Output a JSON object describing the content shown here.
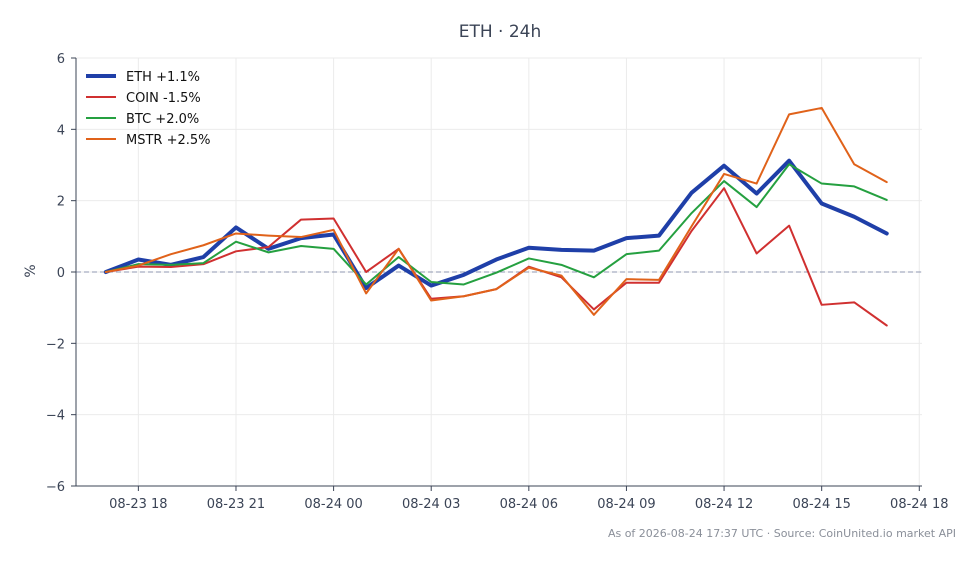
{
  "chart_data": {
    "type": "line",
    "title": "ETH · 24h",
    "ylabel": "%",
    "xlabel": "",
    "ylim": [
      -6,
      6
    ],
    "yticks": [
      -6,
      -4,
      -2,
      0,
      2,
      4,
      6
    ],
    "ytick_labels": [
      "−6",
      "−4",
      "−2",
      "0",
      "2",
      "4",
      "6"
    ],
    "xlim": [
      "2026-08-23 16:05",
      "2026-08-24 18:05"
    ],
    "xticks": [
      "2026-08-23 18:00",
      "2026-08-23 21:00",
      "2026-08-24 00:00",
      "2026-08-24 03:00",
      "2026-08-24 06:00",
      "2026-08-24 09:00",
      "2026-08-24 12:00",
      "2026-08-24 15:00",
      "2026-08-24 18:00"
    ],
    "xtick_labels": [
      "08-23 18",
      "08-23 21",
      "08-24 00",
      "08-24 03",
      "08-24 06",
      "08-24 09",
      "08-24 12",
      "08-24 15",
      "08-24 18"
    ],
    "grid": true,
    "zero_line": true,
    "legend_position": "top-left",
    "x": [
      "2026-08-23 17:00",
      "2026-08-23 18:00",
      "2026-08-23 19:00",
      "2026-08-23 20:00",
      "2026-08-23 21:00",
      "2026-08-23 22:00",
      "2026-08-23 23:00",
      "2026-08-24 00:00",
      "2026-08-24 01:00",
      "2026-08-24 02:00",
      "2026-08-24 03:00",
      "2026-08-24 04:00",
      "2026-08-24 05:00",
      "2026-08-24 06:00",
      "2026-08-24 07:00",
      "2026-08-24 08:00",
      "2026-08-24 09:00",
      "2026-08-24 10:00",
      "2026-08-24 11:00",
      "2026-08-24 12:00",
      "2026-08-24 13:00",
      "2026-08-24 14:00",
      "2026-08-24 15:00",
      "2026-08-24 16:00",
      "2026-08-24 17:00"
    ],
    "series": [
      {
        "name": "ETH +1.1%",
        "color": "#1f3fa8",
        "width": 4,
        "values": [
          0.0,
          0.35,
          0.2,
          0.42,
          1.25,
          0.65,
          0.95,
          1.05,
          -0.45,
          0.18,
          -0.38,
          -0.08,
          0.35,
          0.68,
          0.62,
          0.6,
          0.95,
          1.02,
          2.22,
          2.98,
          2.2,
          3.12,
          1.92,
          1.55,
          1.08
        ]
      },
      {
        "name": "COIN -1.5%",
        "color": "#d03030",
        "width": 2,
        "values": [
          0.0,
          0.15,
          0.14,
          0.22,
          0.58,
          0.7,
          1.47,
          1.5,
          0.0,
          0.65,
          -0.75,
          -0.68,
          -0.48,
          0.15,
          -0.15,
          -1.05,
          -0.3,
          -0.3,
          1.15,
          2.35,
          0.52,
          1.3,
          -0.92,
          -0.85,
          -1.5
        ]
      },
      {
        "name": "BTC +2.0%",
        "color": "#25a040",
        "width": 2,
        "values": [
          0.0,
          0.22,
          0.2,
          0.25,
          0.85,
          0.55,
          0.73,
          0.65,
          -0.35,
          0.42,
          -0.28,
          -0.35,
          -0.02,
          0.38,
          0.2,
          -0.15,
          0.5,
          0.6,
          1.65,
          2.55,
          1.82,
          3.02,
          2.48,
          2.4,
          2.02
        ]
      },
      {
        "name": "MSTR +2.5%",
        "color": "#e0621a",
        "width": 2,
        "values": [
          0.0,
          0.18,
          0.5,
          0.75,
          1.08,
          1.02,
          0.98,
          1.18,
          -0.6,
          0.65,
          -0.8,
          -0.68,
          -0.48,
          0.12,
          -0.1,
          -1.2,
          -0.2,
          -0.22,
          1.28,
          2.75,
          2.48,
          4.42,
          4.6,
          3.02,
          2.52
        ]
      }
    ]
  },
  "footer": "As of 2026-08-24 17:37 UTC · Source: CoinUnited.io market API"
}
